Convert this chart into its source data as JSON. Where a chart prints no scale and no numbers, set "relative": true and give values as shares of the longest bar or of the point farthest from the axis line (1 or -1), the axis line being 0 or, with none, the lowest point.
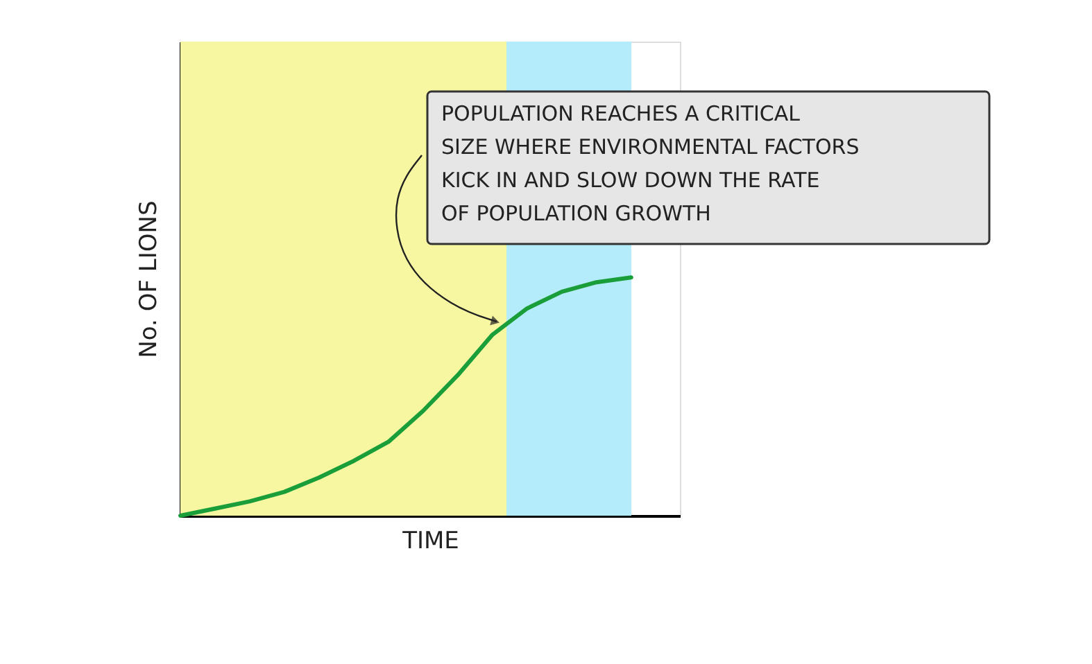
{
  "chart_data": {
    "type": "line",
    "relative": true,
    "xlabel": "TIME",
    "ylabel": "No. OF LIONS",
    "categories": [
      null,
      null,
      null,
      null,
      null,
      null,
      null,
      null,
      null,
      null,
      null,
      null,
      null,
      null
    ],
    "series": [
      {
        "color": "#1a9e3a",
        "values": [
          0,
          0.03,
          0.06,
          0.1,
          0.16,
          0.23,
          0.31,
          0.44,
          0.59,
          0.76,
          0.87,
          0.94,
          0.98,
          1.0
        ]
      }
    ],
    "annotations": [
      "POPULATION REACHES A CRITICAL SIZE WHERE ENVIRONMENTAL FACTORS KICK IN AND SLOW DOWN THE RATE OF POPULATION GROWTH"
    ],
    "tick_labels": false,
    "grid": false,
    "marker": "none",
    "line_style": "solid"
  }
}
